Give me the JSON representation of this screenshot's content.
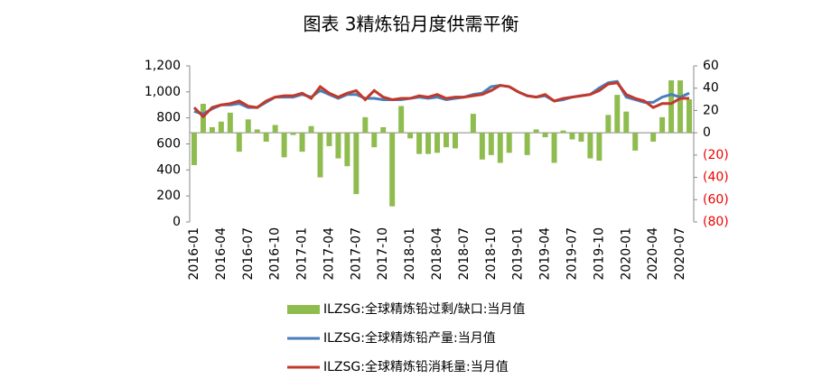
{
  "chart_data": {
    "type": "bar-line",
    "title": "图表 3精炼铅月度供需平衡",
    "categories": [
      "2016-01",
      null,
      null,
      "2016-04",
      null,
      null,
      "2016-07",
      null,
      null,
      "2016-10",
      null,
      null,
      "2017-01",
      null,
      null,
      "2017-04",
      null,
      null,
      "2017-07",
      null,
      null,
      "2017-10",
      null,
      null,
      "2018-01",
      null,
      null,
      "2018-04",
      null,
      null,
      "2018-07",
      null,
      null,
      "2018-10",
      null,
      null,
      "2019-01",
      null,
      null,
      "2019-04",
      null,
      null,
      "2019-07",
      null,
      null,
      "2019-10",
      null,
      null,
      "2020-01",
      null,
      null,
      "2020-04",
      null,
      null,
      "2020-07",
      null
    ],
    "series": [
      {
        "name": "ILZSG:全球精炼铅过剩/缺口:当月值",
        "color": "#8fbc4f",
        "axis": "y2",
        "kind": "bar",
        "values": [
          -29,
          26,
          5,
          10,
          18,
          -17,
          12,
          3,
          -8,
          7,
          -22,
          -2,
          -17,
          6,
          -40,
          -12,
          -23,
          -30,
          -55,
          14,
          -13,
          5,
          -66,
          24,
          -5,
          -19,
          -19,
          -18,
          -13,
          -14,
          0,
          17,
          -24,
          -20,
          -27,
          -18,
          0,
          -20,
          3,
          -4,
          -27,
          2,
          -6,
          -8,
          -23,
          -25,
          16,
          34,
          19,
          -16,
          0,
          -8,
          14,
          47,
          47,
          30
        ]
      },
      {
        "name": "ILZSG:全球精炼铅产量:当月值",
        "color": "#4a7ebb",
        "kind": "line",
        "values": [
          850,
          830,
          870,
          900,
          900,
          910,
          880,
          880,
          920,
          960,
          960,
          960,
          980,
          960,
          1010,
          980,
          950,
          980,
          980,
          950,
          950,
          940,
          940,
          940,
          950,
          960,
          950,
          960,
          940,
          950,
          960,
          980,
          990,
          1040,
          1050,
          1040,
          1000,
          970,
          960,
          970,
          930,
          940,
          960,
          970,
          980,
          1030,
          1070,
          1080,
          960,
          940,
          920,
          920,
          960,
          980,
          960,
          990
        ]
      },
      {
        "name": "ILZSG:全球精炼铅消耗量:当月值",
        "color": "#c0392b",
        "kind": "line",
        "values": [
          880,
          810,
          880,
          900,
          910,
          930,
          890,
          880,
          930,
          960,
          970,
          970,
          990,
          950,
          1040,
          990,
          960,
          990,
          1010,
          940,
          1010,
          960,
          940,
          950,
          950,
          970,
          960,
          980,
          950,
          960,
          960,
          970,
          980,
          1010,
          1050,
          1040,
          1000,
          970,
          960,
          980,
          930,
          950,
          960,
          970,
          980,
          1010,
          1060,
          1070,
          980,
          950,
          930,
          880,
          910,
          910,
          950,
          950
        ]
      }
    ],
    "ylim": [
      0,
      1200
    ],
    "yticks": [
      0,
      200,
      400,
      600,
      800,
      {
        "value": 1000,
        "label": "1,000"
      },
      {
        "value": 1200,
        "label": "1,200"
      }
    ],
    "y2lim": [
      -80,
      60
    ],
    "y2ticks": [
      {
        "value": -80,
        "label": "(80)"
      },
      {
        "value": -60,
        "label": "(60)"
      },
      {
        "value": -40,
        "label": "(40)"
      },
      {
        "value": -20,
        "label": "(20)"
      },
      0,
      20,
      40,
      60
    ]
  }
}
